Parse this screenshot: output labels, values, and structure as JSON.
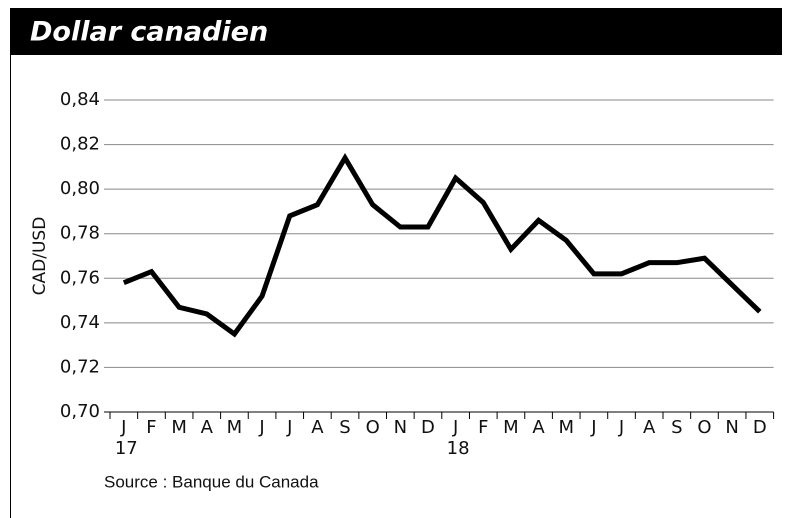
{
  "chart_data": {
    "type": "line",
    "title": "Dollar canadien",
    "y_label": "CAD/USD",
    "source": "Source : Banque du Canada",
    "categories": [
      "J",
      "F",
      "M",
      "A",
      "M",
      "J",
      "J",
      "A",
      "S",
      "O",
      "N",
      "D",
      "J",
      "F",
      "M",
      "A",
      "M",
      "J",
      "J",
      "A",
      "S",
      "O",
      "N",
      "D"
    ],
    "category_years": [
      "17",
      null,
      null,
      null,
      null,
      null,
      null,
      null,
      null,
      null,
      null,
      null,
      "18",
      null,
      null,
      null,
      null,
      null,
      null,
      null,
      null,
      null,
      null,
      null
    ],
    "series": [
      {
        "name": "CAD/USD",
        "color": "#000000",
        "values": [
          0.758,
          0.763,
          0.747,
          0.744,
          0.735,
          0.752,
          0.788,
          0.793,
          0.814,
          0.793,
          0.783,
          0.783,
          0.805,
          0.794,
          0.773,
          0.786,
          0.777,
          0.762,
          0.762,
          0.767,
          0.767,
          0.769,
          0.757,
          0.745
        ]
      }
    ],
    "ylim": [
      0.7,
      0.84
    ],
    "yticks": [
      {
        "value": 0.7,
        "label": "0,70"
      },
      {
        "value": 0.72,
        "label": "0,72"
      },
      {
        "value": 0.74,
        "label": "0,74"
      },
      {
        "value": 0.76,
        "label": "0,76"
      },
      {
        "value": 0.78,
        "label": "0,78"
      },
      {
        "value": 0.8,
        "label": "0,80"
      },
      {
        "value": 0.82,
        "label": "0,82"
      },
      {
        "value": 0.84,
        "label": "0,84"
      }
    ],
    "grid": true
  }
}
